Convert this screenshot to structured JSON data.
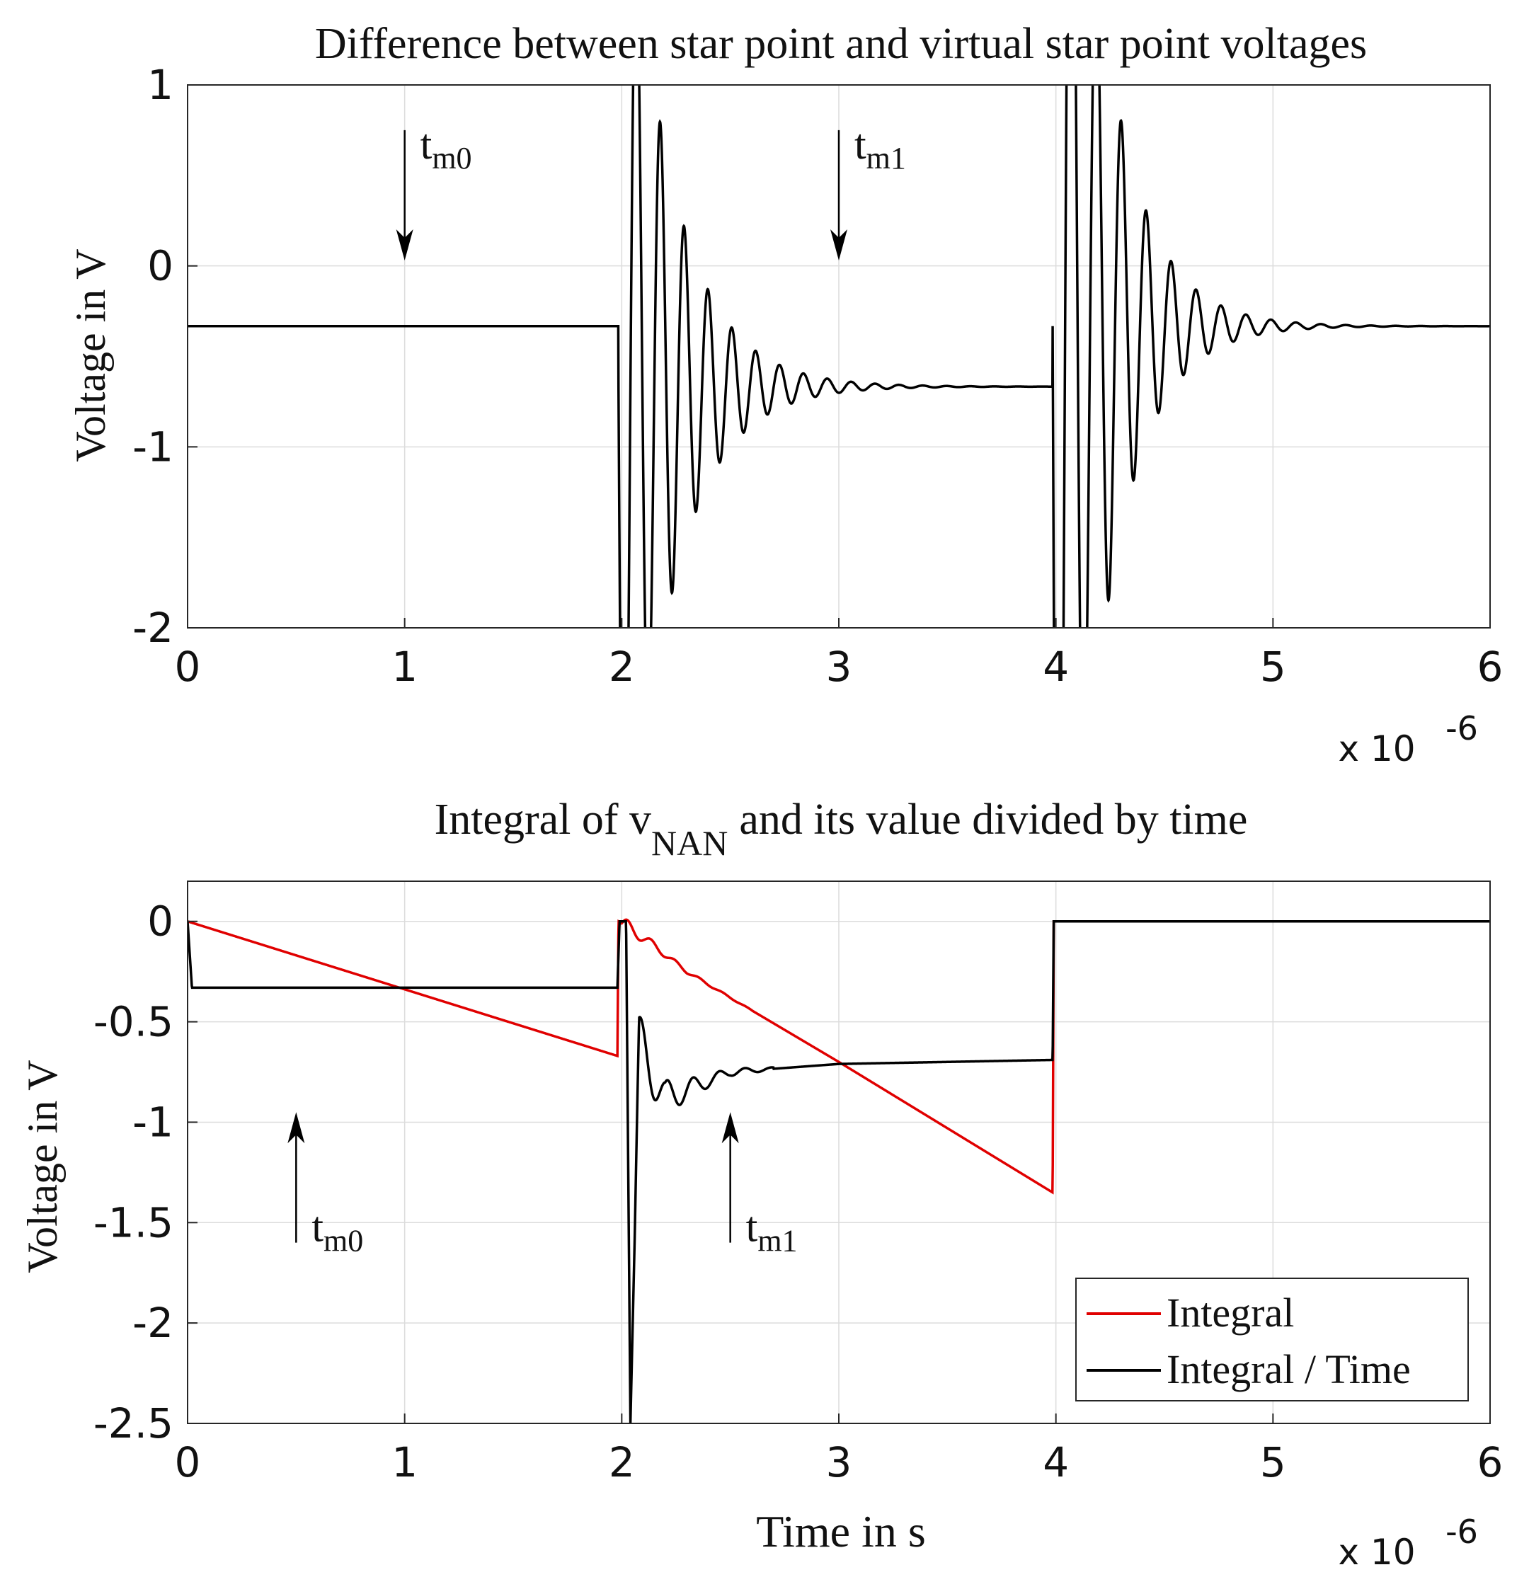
{
  "colors": {
    "integral": "#e00000",
    "signal": "#000000",
    "grid": "#dcdcdc",
    "axis": "#262626"
  },
  "chart_data": [
    {
      "id": "top",
      "type": "line",
      "title": "Difference between star point and virtual star point voltages",
      "xlabel": "",
      "ylabel": "Voltage in V",
      "xlim": [
        0,
        6
      ],
      "ylim": [
        -2,
        1
      ],
      "xticks": [
        0,
        1,
        2,
        3,
        4,
        5,
        6
      ],
      "xtick_labels": [
        "0",
        "1",
        "2",
        "3",
        "4",
        "5",
        "6"
      ],
      "yticks": [
        -2,
        -1,
        0,
        1
      ],
      "ytick_labels": [
        "-2",
        "-1",
        "0",
        "1"
      ],
      "x_exponent": {
        "base": "x 10",
        "power": "-6"
      },
      "grid": true,
      "series": [
        {
          "name": "v_NAN",
          "color_key": "signal",
          "segments": [
            {
              "t_start": 0,
              "t_end": 1.985,
              "level": -0.333
            },
            {
              "t_start": 1.985,
              "t_end": 3.985,
              "level": -0.667,
              "ringing": {
                "amplitude": 3.5,
                "period": 0.11,
                "decay": 0.22
              }
            },
            {
              "t_start": 3.985,
              "t_end": 6,
              "level": -0.333,
              "ringing": {
                "amplitude": 5.5,
                "period": 0.115,
                "decay": 0.2
              }
            }
          ]
        }
      ],
      "annotations": [
        {
          "label": "t",
          "subscript": "m0",
          "x": 1.0,
          "direction": "down",
          "y_tail": 0.75,
          "y_head": 0.03
        },
        {
          "label": "t",
          "subscript": "m1",
          "x": 3.0,
          "direction": "down",
          "y_tail": 0.75,
          "y_head": 0.03
        }
      ]
    },
    {
      "id": "bottom",
      "type": "line",
      "title_prefix": "Integral of v",
      "title_subscript": "NAN",
      "title_suffix": "and its value divided by time",
      "xlabel": "Time in s",
      "ylabel": "Voltage in V",
      "xlim": [
        0,
        6
      ],
      "ylim": [
        -2.5,
        0.2
      ],
      "xticks": [
        0,
        1,
        2,
        3,
        4,
        5,
        6
      ],
      "xtick_labels": [
        "0",
        "1",
        "2",
        "3",
        "4",
        "5",
        "6"
      ],
      "yticks": [
        -2.5,
        -2,
        -1.5,
        -1,
        -0.5,
        0
      ],
      "ytick_labels": [
        "-2.5",
        "-2",
        "-1.5",
        "-1",
        "-0.5",
        "0"
      ],
      "x_exponent": {
        "base": "x 10",
        "power": "-6"
      },
      "grid": true,
      "legend": {
        "position": "bottom-right",
        "entries": [
          {
            "label": "Integral",
            "color_key": "integral"
          },
          {
            "label": "Integral / Time",
            "color_key": "signal"
          }
        ]
      },
      "series": [
        {
          "name": "Integral",
          "color_key": "integral",
          "points": [
            [
              0,
              0
            ],
            [
              1.98,
              -0.67
            ],
            [
              1.985,
              0.0
            ],
            [
              2.1,
              -0.08
            ],
            [
              2.3,
              -0.25
            ],
            [
              2.5,
              -0.38
            ],
            [
              3.0,
              -0.7
            ],
            [
              3.985,
              -1.35
            ],
            [
              3.99,
              0.0
            ],
            [
              6.0,
              0.0
            ]
          ],
          "ripple": {
            "t_start": 2.0,
            "t_end": 2.6,
            "amplitude": 0.04,
            "period": 0.11
          }
        },
        {
          "name": "Integral / Time",
          "color_key": "signal",
          "points": [
            [
              0,
              0
            ],
            [
              0.02,
              -0.33
            ],
            [
              1.98,
              -0.33
            ],
            [
              1.99,
              0.0
            ],
            [
              2.02,
              0.0
            ],
            [
              2.04,
              -2.5
            ],
            [
              2.08,
              -0.62
            ],
            [
              2.2,
              -0.88
            ],
            [
              2.5,
              -0.75
            ],
            [
              3.0,
              -0.71
            ],
            [
              3.985,
              -0.69
            ],
            [
              3.99,
              0.0
            ],
            [
              6.0,
              0.0
            ]
          ],
          "ripple": {
            "t_start": 2.06,
            "t_end": 2.7,
            "amplitude": 0.18,
            "period": 0.12
          }
        }
      ],
      "annotations": [
        {
          "label": "t",
          "subscript": "m0",
          "x": 0.5,
          "direction": "up",
          "y_tail": -1.6,
          "y_head": -0.95
        },
        {
          "label": "t",
          "subscript": "m1",
          "x": 2.5,
          "direction": "up",
          "y_tail": -1.6,
          "y_head": -0.95
        }
      ]
    }
  ]
}
